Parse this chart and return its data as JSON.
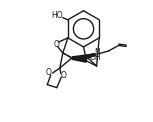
{
  "bg": "#ffffff",
  "lc": "#1a1a1a",
  "lw": 1.0,
  "fs": 5.5,
  "figsize": [
    1.53,
    1.22
  ],
  "dpi": 100,
  "xlim": [
    -1,
    14
  ],
  "ylim": [
    -1,
    11
  ]
}
